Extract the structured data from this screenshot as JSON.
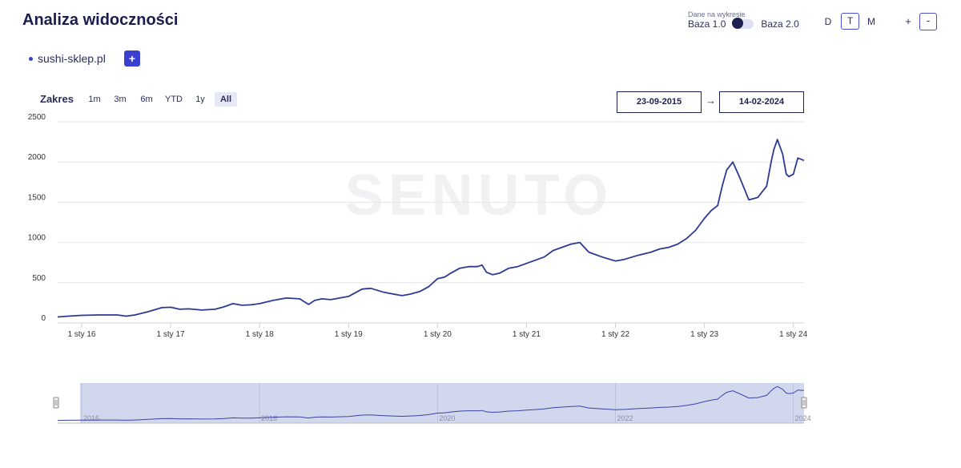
{
  "header": {
    "title": "Analiza widoczności",
    "domain": "sushi-sklep.pl",
    "add_label": "+",
    "base_caption": "Dane na wykresie",
    "base_left": "Baza 1.0",
    "base_right": "Baza 2.0",
    "periods": [
      "D",
      "T",
      "M"
    ],
    "selected_period": "T",
    "zoom_in": "+",
    "zoom_out": "-"
  },
  "range": {
    "label": "Zakres",
    "buttons": [
      "1m",
      "3m",
      "6m",
      "YTD",
      "1y",
      "All"
    ],
    "active": "All",
    "from": "23-09-2015",
    "arrow": "→",
    "to": "14-02-2024"
  },
  "colors": {
    "line": "#2b3a93",
    "grid": "#e6e6e6",
    "navigator_fill": "#c9d0ea",
    "navigator_line": "#3a45a6",
    "accent": "#3b3fd0"
  },
  "chart_data": {
    "type": "line",
    "title": "",
    "xlabel": "",
    "ylabel": "",
    "ylim": [
      0,
      2500
    ],
    "yticks": [
      0,
      500,
      1000,
      1500,
      2000,
      2500
    ],
    "xlim": [
      2015.73,
      2024.12
    ],
    "xticks": [
      {
        "x": 2016,
        "label": "1 sty 16"
      },
      {
        "x": 2017,
        "label": "1 sty 17"
      },
      {
        "x": 2018,
        "label": "1 sty 18"
      },
      {
        "x": 2019,
        "label": "1 sty 19"
      },
      {
        "x": 2020,
        "label": "1 sty 20"
      },
      {
        "x": 2021,
        "label": "1 sty 21"
      },
      {
        "x": 2022,
        "label": "1 sty 22"
      },
      {
        "x": 2023,
        "label": "1 sty 23"
      },
      {
        "x": 2024,
        "label": "1 sty 24"
      }
    ],
    "navigator_labels": [
      {
        "x": 2016,
        "label": "2016"
      },
      {
        "x": 2018,
        "label": "2018"
      },
      {
        "x": 2020,
        "label": "2020"
      },
      {
        "x": 2022,
        "label": "2022"
      },
      {
        "x": 2024,
        "label": "2024"
      }
    ],
    "watermark": "SENUTO",
    "series": [
      {
        "name": "sushi-sklep.pl",
        "x": [
          2015.73,
          2015.85,
          2016.0,
          2016.2,
          2016.4,
          2016.5,
          2016.6,
          2016.75,
          2016.9,
          2017.0,
          2017.1,
          2017.2,
          2017.35,
          2017.5,
          2017.6,
          2017.7,
          2017.8,
          2017.9,
          2018.0,
          2018.15,
          2018.3,
          2018.45,
          2018.55,
          2018.62,
          2018.7,
          2018.8,
          2019.0,
          2019.15,
          2019.25,
          2019.4,
          2019.5,
          2019.6,
          2019.7,
          2019.8,
          2019.9,
          2020.0,
          2020.08,
          2020.15,
          2020.25,
          2020.35,
          2020.45,
          2020.5,
          2020.55,
          2020.62,
          2020.7,
          2020.8,
          2020.9,
          2021.0,
          2021.1,
          2021.2,
          2021.3,
          2021.4,
          2021.5,
          2021.6,
          2021.7,
          2021.85,
          2022.0,
          2022.1,
          2022.25,
          2022.4,
          2022.5,
          2022.6,
          2022.7,
          2022.8,
          2022.9,
          2023.0,
          2023.08,
          2023.15,
          2023.2,
          2023.25,
          2023.32,
          2023.4,
          2023.5,
          2023.6,
          2023.7,
          2023.75,
          2023.78,
          2023.82,
          2023.88,
          2023.92,
          2023.95,
          2024.0,
          2024.05,
          2024.12
        ],
        "y": [
          75,
          85,
          95,
          100,
          100,
          85,
          100,
          140,
          190,
          195,
          170,
          175,
          160,
          170,
          200,
          240,
          220,
          225,
          240,
          280,
          310,
          300,
          230,
          280,
          300,
          290,
          330,
          420,
          430,
          380,
          360,
          340,
          360,
          390,
          450,
          550,
          570,
          620,
          680,
          700,
          700,
          720,
          630,
          600,
          620,
          680,
          700,
          740,
          780,
          820,
          900,
          940,
          980,
          1000,
          880,
          820,
          770,
          790,
          840,
          880,
          920,
          940,
          980,
          1050,
          1150,
          1300,
          1400,
          1460,
          1700,
          1900,
          2000,
          1800,
          1530,
          1560,
          1700,
          2000,
          2150,
          2280,
          2100,
          1850,
          1820,
          1850,
          2050,
          2020
        ]
      }
    ]
  }
}
